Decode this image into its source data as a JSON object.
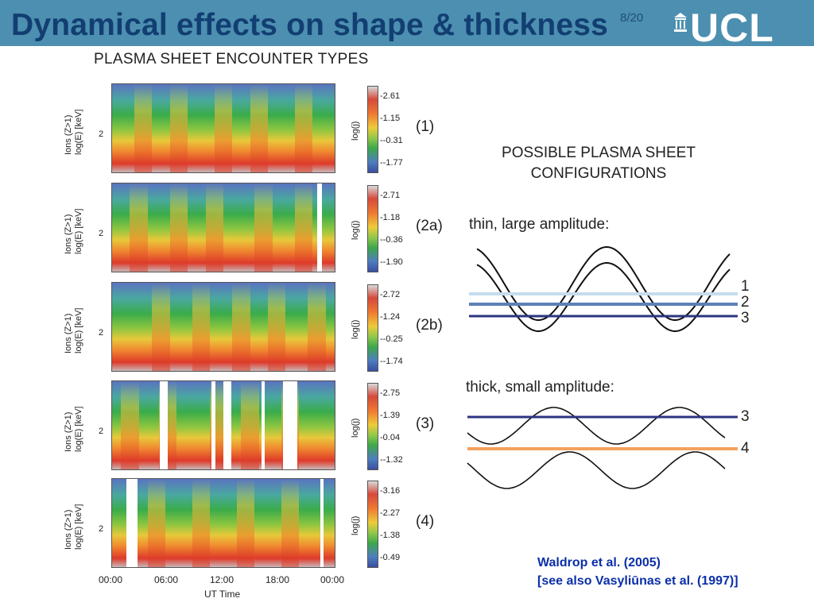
{
  "header": {
    "title": "Dynamical effects on shape & thickness",
    "page_number": "8/20",
    "logo_text": "UCL"
  },
  "left_figure": {
    "title": "PLASMA SHEET ENCOUNTER TYPES",
    "y_axis_label_line1": "Ions (Z>1)",
    "y_axis_label_line2": "log(E) [keV]",
    "y_tick": "2",
    "colorbar_label": "log(j)",
    "x_ticks": [
      "00:00",
      "06:00",
      "12:00",
      "18:00",
      "00:00"
    ],
    "x_label": "UT Time",
    "panels": [
      {
        "tag": "(1)",
        "ticks": [
          "2.61",
          "1.15",
          "-0.31",
          "-1.77"
        ]
      },
      {
        "tag": "(2a)",
        "ticks": [
          "2.71",
          "1.18",
          "-0.36",
          "-1.90"
        ]
      },
      {
        "tag": "(2b)",
        "ticks": [
          "2.72",
          "1.24",
          "-0.25",
          "-1.74"
        ]
      },
      {
        "tag": "(3)",
        "ticks": [
          "2.75",
          "1.39",
          "0.04",
          "-1.32"
        ]
      },
      {
        "tag": "(4)",
        "ticks": [
          "3.16",
          "2.27",
          "1.38",
          "0.49"
        ]
      }
    ]
  },
  "right_figure": {
    "title_line1": "POSSIBLE PLASMA SHEET",
    "title_line2": "CONFIGURATIONS",
    "thin_label": "thin, large amplitude:",
    "thick_label": "thick, small amplitude:",
    "line_numbers_thin": [
      "1",
      "2",
      "3"
    ],
    "line_numbers_thick": [
      "3",
      "4"
    ],
    "colors": {
      "line1": "#c5dcef",
      "line2": "#5d7fb5",
      "line3": "#2b3580",
      "line4": "#f4a15d"
    }
  },
  "citation": {
    "line1": "Waldrop et al. (2005)",
    "line2": "[see also Vasyliūnas et al. (1997)]"
  },
  "colors": {
    "header_bar": "#4c8fb0",
    "title": "#123e72",
    "citation": "#0b2fa8"
  }
}
